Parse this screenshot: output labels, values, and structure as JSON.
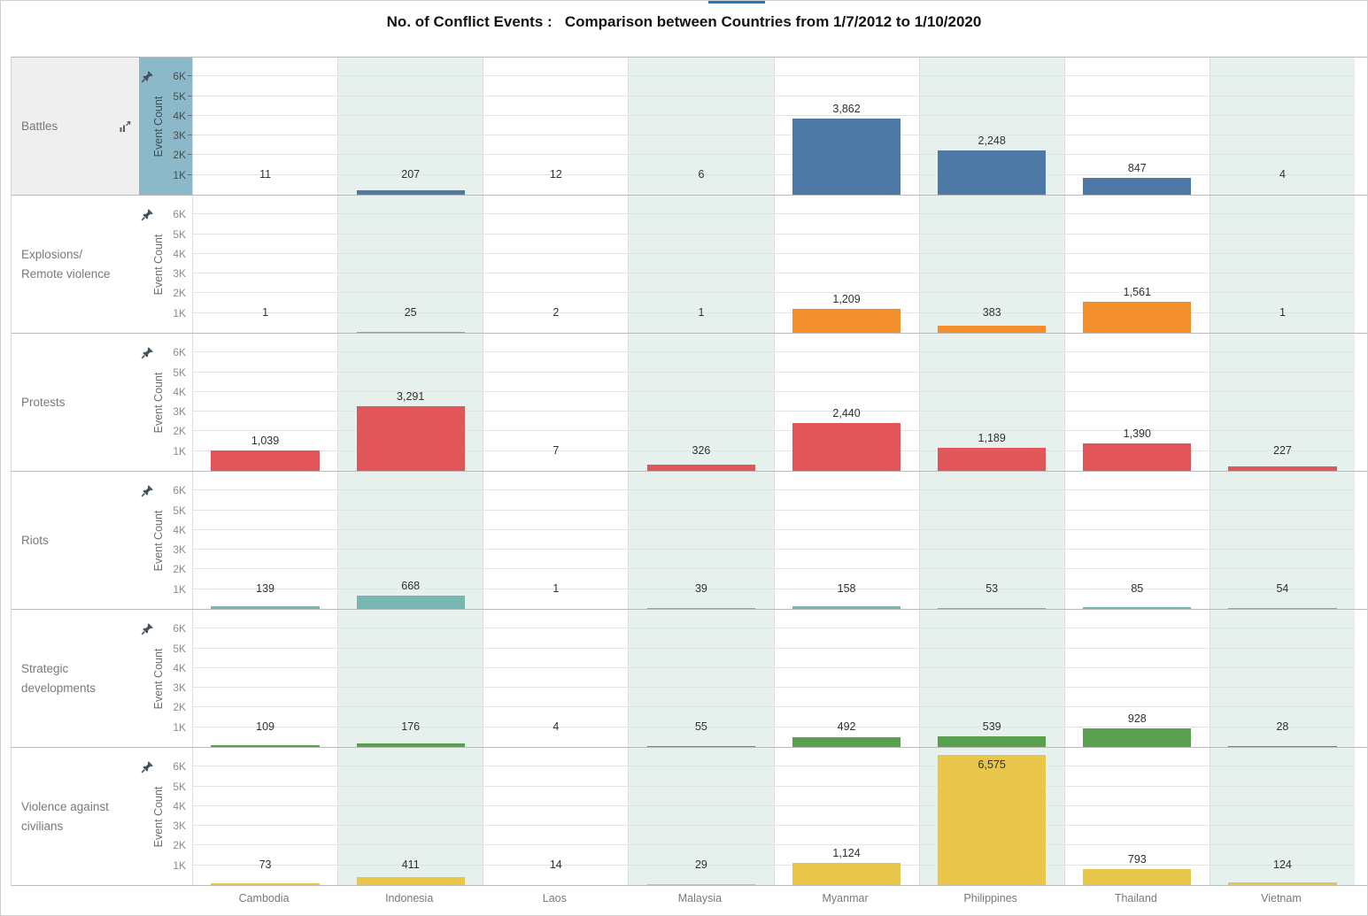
{
  "title": "No. of Conflict Events :   Comparison between Countries from 1/7/2012 to 1/10/2020",
  "top_accent_color": "#2878ae",
  "axis": {
    "label": "Event Count",
    "ticks": [
      "6K",
      "5K",
      "4K",
      "3K",
      "2K",
      "1K"
    ]
  },
  "chart_data": {
    "type": "bar",
    "title": "No. of Conflict Events : Comparison between Countries from 1/7/2012 to 1/10/2020",
    "categories": [
      "Cambodia",
      "Indonesia",
      "Laos",
      "Malaysia",
      "Myanmar",
      "Philippines",
      "Thailand",
      "Vietnam"
    ],
    "ylabel": "Event Count",
    "ylim": [
      0,
      7000
    ],
    "ytick_labels": [
      "1K",
      "2K",
      "3K",
      "4K",
      "5K",
      "6K"
    ],
    "grid": true,
    "legend": "none",
    "series": [
      {
        "name": "Battles",
        "color": "#4e79a7",
        "selected": true,
        "values": [
          11,
          207,
          12,
          6,
          3862,
          2248,
          847,
          4
        ]
      },
      {
        "name": "Explosions/\nRemote violence",
        "color": "#f28e2b",
        "selected": false,
        "values": [
          1,
          25,
          2,
          1,
          1209,
          383,
          1561,
          1
        ]
      },
      {
        "name": "Protests",
        "color": "#e15759",
        "selected": false,
        "values": [
          1039,
          3291,
          7,
          326,
          2440,
          1189,
          1390,
          227
        ]
      },
      {
        "name": "Riots",
        "color": "#76b7b2",
        "selected": false,
        "values": [
          139,
          668,
          1,
          39,
          158,
          53,
          85,
          54
        ]
      },
      {
        "name": "Strategic\ndevelopments",
        "color": "#59a14f",
        "selected": false,
        "values": [
          109,
          176,
          4,
          55,
          492,
          539,
          928,
          28
        ]
      },
      {
        "name": "Violence against\ncivilians",
        "color": "#e7c64a",
        "selected": false,
        "values": [
          73,
          411,
          14,
          29,
          1124,
          6575,
          793,
          124
        ]
      }
    ]
  },
  "styles": {
    "band_color": "#e6f0ec",
    "selected_header_bg": "#efefef",
    "selected_axis_bg": "#8cb9ca",
    "gridline_color": "#e3e3e3"
  }
}
